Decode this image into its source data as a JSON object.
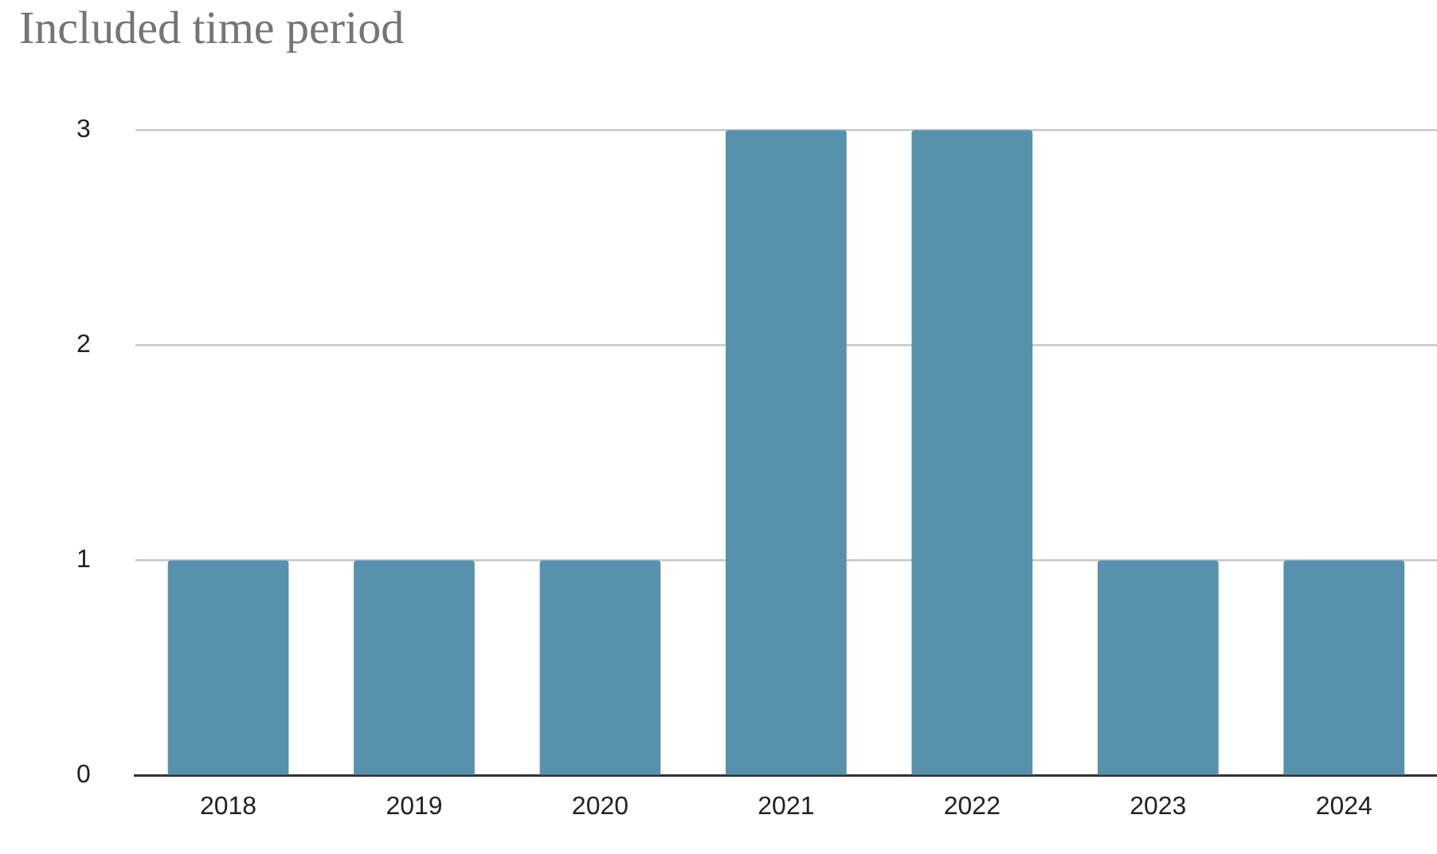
{
  "chart_data": {
    "type": "bar",
    "title": "Included time period",
    "categories": [
      "2018",
      "2019",
      "2020",
      "2021",
      "2022",
      "2023",
      "2024"
    ],
    "values": [
      1,
      1,
      1,
      3,
      3,
      1,
      1
    ],
    "color": "#5891ad",
    "ylim": [
      0,
      3
    ],
    "yticks": [
      0,
      1,
      2,
      3
    ],
    "grid": "y",
    "legend": false
  }
}
